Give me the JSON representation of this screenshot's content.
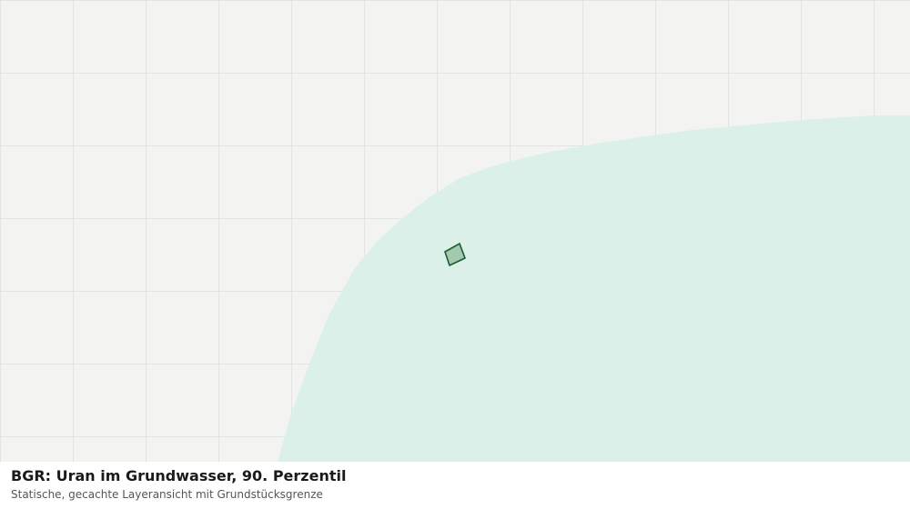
{
  "map": {
    "background_color": "#f3f4f2",
    "grid_color": "#e2e4e1",
    "layer_fill_color": "#dcf0ea",
    "parcel_fill_color": "#a3c9ae",
    "parcel_stroke_color": "#1f5a32"
  },
  "caption": {
    "title": "BGR: Uran im Grundwasser, 90. Perzentil",
    "subtitle": "Statische, gecachte Layeransicht mit Grundstücksgrenze"
  }
}
